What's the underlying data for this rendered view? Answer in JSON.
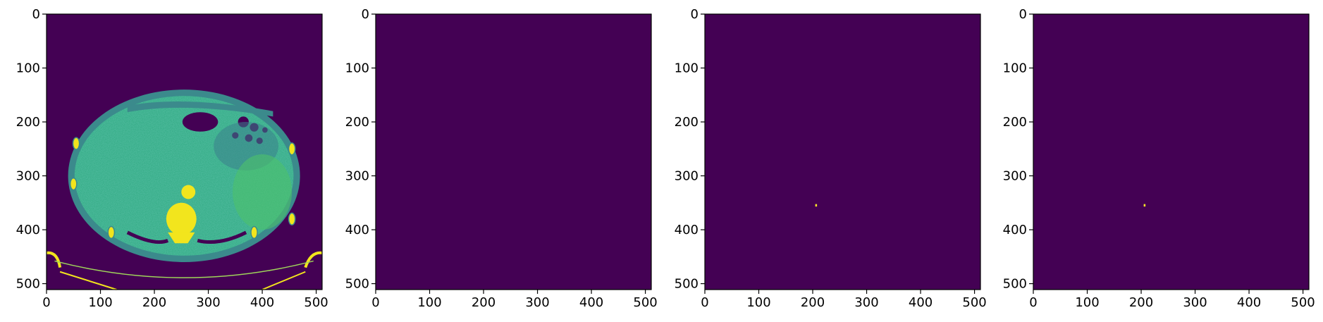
{
  "chart_data": [
    {
      "type": "heatmap",
      "image": "axial abdominal CT slice",
      "colormap": "viridis",
      "xlim": [
        0,
        511
      ],
      "ylim": [
        511,
        0
      ],
      "xticks": [
        0,
        100,
        200,
        300,
        400,
        500
      ],
      "yticks": [
        0,
        100,
        200,
        300,
        400,
        500
      ],
      "xtick_labels": [
        "0",
        "100",
        "200",
        "300",
        "400",
        "500"
      ],
      "ytick_labels": [
        "0",
        "100",
        "200",
        "300",
        "400",
        "500"
      ]
    },
    {
      "type": "heatmap",
      "image": "empty mask",
      "colormap": "viridis",
      "xlim": [
        0,
        511
      ],
      "ylim": [
        511,
        0
      ],
      "xticks": [
        0,
        100,
        200,
        300,
        400,
        500
      ],
      "yticks": [
        0,
        100,
        200,
        300,
        400,
        500
      ],
      "xtick_labels": [
        "0",
        "100",
        "200",
        "300",
        "400",
        "500"
      ],
      "ytick_labels": [
        "0",
        "100",
        "200",
        "300",
        "400",
        "500"
      ]
    },
    {
      "type": "heatmap",
      "image": "mask with single small spot",
      "colormap": "viridis",
      "spot": {
        "x": 206,
        "y": 355
      },
      "xlim": [
        0,
        511
      ],
      "ylim": [
        511,
        0
      ],
      "xticks": [
        0,
        100,
        200,
        300,
        400,
        500
      ],
      "yticks": [
        0,
        100,
        200,
        300,
        400,
        500
      ],
      "xtick_labels": [
        "0",
        "100",
        "200",
        "300",
        "400",
        "500"
      ],
      "ytick_labels": [
        "0",
        "100",
        "200",
        "300",
        "400",
        "500"
      ]
    },
    {
      "type": "heatmap",
      "image": "mask with single small spot",
      "colormap": "viridis",
      "spot": {
        "x": 206,
        "y": 355
      },
      "xlim": [
        0,
        511
      ],
      "ylim": [
        511,
        0
      ],
      "xticks": [
        0,
        100,
        200,
        300,
        400,
        500
      ],
      "yticks": [
        0,
        100,
        200,
        300,
        400,
        500
      ],
      "xtick_labels": [
        "0",
        "100",
        "200",
        "300",
        "400",
        "500"
      ],
      "ytick_labels": [
        "0",
        "100",
        "200",
        "300",
        "400",
        "500"
      ]
    }
  ],
  "colors": {
    "background": "#440154",
    "body_tissue": "#2ca87f",
    "skin_ring": "#3b8a8c",
    "bone": "#f2e51d",
    "air": "#440154",
    "spot": "#fde725"
  }
}
